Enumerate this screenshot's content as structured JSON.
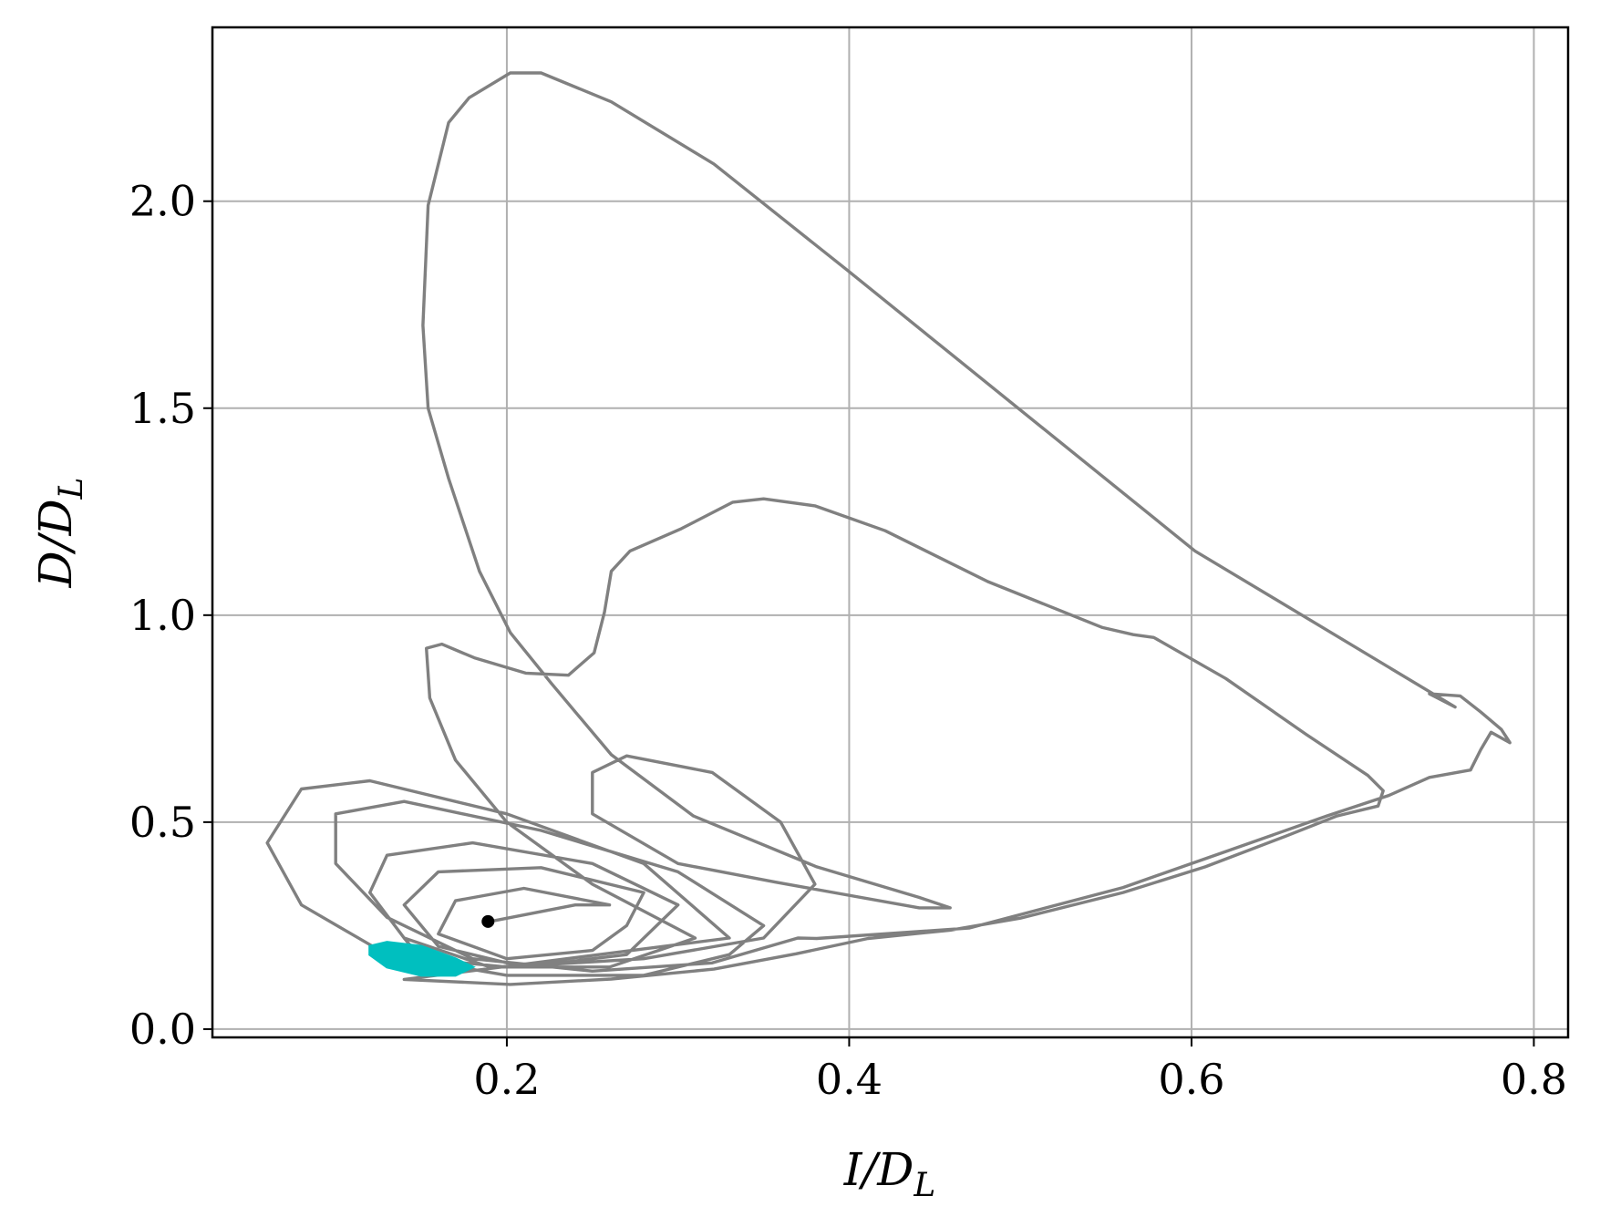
{
  "chart_data": {
    "type": "line",
    "xlabel": [
      "I/D",
      "L"
    ],
    "ylabel": [
      "D/D",
      "L"
    ],
    "xlim": [
      0.028,
      0.82
    ],
    "ylim": [
      -0.02,
      2.42
    ],
    "xticks": [
      0.2,
      0.4,
      0.6,
      0.8
    ],
    "yticks": [
      {
        "value": 0,
        "label": "0.0"
      },
      0.5,
      {
        "value": 1,
        "label": "1.0"
      },
      1.5,
      {
        "value": 2,
        "label": "2.0"
      }
    ],
    "grid": true,
    "series": [
      {
        "color": "#808080",
        "style": "line",
        "x": [
          0.19,
          0.24,
          0.26,
          0.21,
          0.17,
          0.16,
          0.2,
          0.25,
          0.27,
          0.28,
          0.22,
          0.16,
          0.14,
          0.16,
          0.21,
          0.27,
          0.29,
          0.3,
          0.25,
          0.18,
          0.13,
          0.12,
          0.14,
          0.19,
          0.26,
          0.31,
          0.25,
          0.2,
          0.17,
          0.155,
          0.153,
          0.162,
          0.181,
          0.211,
          0.236,
          0.251,
          0.257,
          0.261,
          0.272,
          0.302,
          0.332,
          0.35,
          0.38,
          0.421,
          0.481,
          0.548,
          0.566,
          0.578,
          0.62,
          0.667,
          0.703,
          0.712,
          0.709,
          0.685,
          0.655,
          0.608,
          0.56,
          0.5,
          0.459,
          0.411,
          0.369,
          0.321,
          0.261,
          0.202,
          0.14,
          0.33,
          0.28,
          0.2,
          0.12,
          0.08,
          0.06,
          0.08,
          0.13,
          0.2,
          0.28,
          0.33,
          0.35,
          0.3,
          0.22,
          0.14,
          0.1,
          0.1,
          0.13,
          0.18,
          0.25,
          0.32,
          0.37,
          0.381,
          0.47,
          0.56,
          0.62,
          0.679,
          0.715,
          0.739,
          0.763,
          0.769,
          0.775,
          0.786,
          0.781,
          0.769,
          0.757,
          0.739,
          0.754,
          0.602,
          0.399,
          0.321,
          0.261,
          0.22,
          0.202,
          0.178,
          0.166,
          0.154,
          0.151,
          0.154,
          0.166,
          0.184,
          0.202,
          0.226,
          0.261,
          0.309,
          0.381,
          0.441,
          0.459,
          0.441,
          0.357,
          0.3,
          0.25,
          0.25,
          0.27,
          0.32,
          0.36,
          0.38,
          0.35,
          0.28,
          0.2,
          0.15,
          0.14
        ],
        "y": [
          0.26,
          0.3,
          0.3,
          0.34,
          0.31,
          0.23,
          0.17,
          0.19,
          0.25,
          0.33,
          0.39,
          0.38,
          0.3,
          0.2,
          0.15,
          0.18,
          0.26,
          0.3,
          0.4,
          0.45,
          0.42,
          0.33,
          0.22,
          0.15,
          0.15,
          0.22,
          0.35,
          0.5,
          0.65,
          0.8,
          0.92,
          0.93,
          0.897,
          0.86,
          0.855,
          0.909,
          1.007,
          1.106,
          1.155,
          1.209,
          1.273,
          1.281,
          1.264,
          1.204,
          1.081,
          0.97,
          0.953,
          0.946,
          0.847,
          0.712,
          0.613,
          0.576,
          0.539,
          0.515,
          0.466,
          0.392,
          0.33,
          0.268,
          0.239,
          0.219,
          0.182,
          0.145,
          0.121,
          0.108,
          0.12,
          0.22,
          0.4,
          0.52,
          0.6,
          0.58,
          0.45,
          0.3,
          0.18,
          0.13,
          0.13,
          0.18,
          0.25,
          0.38,
          0.48,
          0.55,
          0.52,
          0.4,
          0.27,
          0.17,
          0.14,
          0.16,
          0.22,
          0.219,
          0.244,
          0.342,
          0.429,
          0.515,
          0.564,
          0.608,
          0.626,
          0.675,
          0.717,
          0.692,
          0.724,
          0.766,
          0.805,
          0.81,
          0.778,
          1.155,
          1.833,
          2.09,
          2.24,
          2.31,
          2.31,
          2.25,
          2.19,
          1.99,
          1.7,
          1.5,
          1.33,
          1.106,
          0.958,
          0.835,
          0.663,
          0.515,
          0.392,
          0.318,
          0.293,
          0.293,
          0.355,
          0.4,
          0.52,
          0.62,
          0.66,
          0.62,
          0.5,
          0.35,
          0.22,
          0.17,
          0.15,
          0.17,
          0.22
        ]
      },
      {
        "color": "#00bfbf",
        "style": "fill",
        "x": [
          0.12,
          0.13,
          0.15,
          0.17,
          0.18,
          0.17,
          0.15,
          0.13,
          0.12
        ],
        "y": [
          0.2,
          0.21,
          0.2,
          0.17,
          0.15,
          0.13,
          0.13,
          0.15,
          0.18
        ]
      },
      {
        "color": "#000000",
        "style": "point",
        "x": [
          0.189
        ],
        "y": [
          0.26
        ]
      }
    ]
  }
}
